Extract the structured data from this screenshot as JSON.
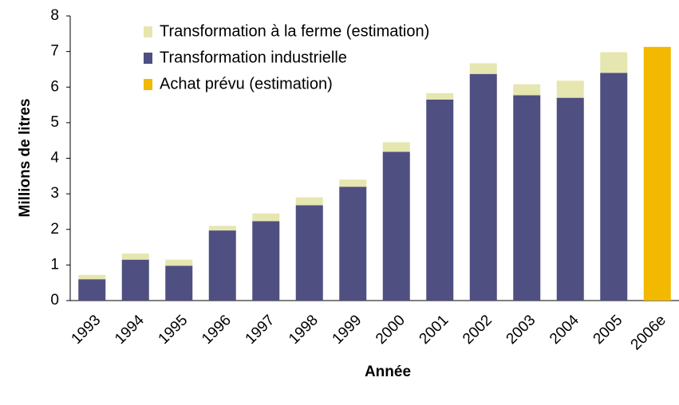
{
  "chart_data": {
    "type": "stacked_bar",
    "x_label": "Année",
    "y_label": "Millions de litres",
    "categories": [
      "1993",
      "1994",
      "1995",
      "1996",
      "1997",
      "1998",
      "1999",
      "2000",
      "2001",
      "2002",
      "2003",
      "2004",
      "2005",
      "2006e"
    ],
    "series": [
      {
        "name": "Transformation à la ferme (estimation)",
        "color": "#e6e6b0",
        "values": [
          0.12,
          0.17,
          0.17,
          0.13,
          0.22,
          0.22,
          0.2,
          0.27,
          0.18,
          0.3,
          0.31,
          0.48,
          0.58,
          null
        ]
      },
      {
        "name": "Transformation industrielle",
        "color": "#4f4f82",
        "values": [
          0.6,
          1.15,
          0.98,
          1.97,
          2.23,
          2.68,
          3.2,
          4.18,
          5.65,
          6.37,
          5.77,
          5.7,
          6.4,
          null
        ]
      },
      {
        "name": "Achat prévu (estimation)",
        "color": "#f2b900",
        "values": [
          null,
          null,
          null,
          null,
          null,
          null,
          null,
          null,
          null,
          null,
          null,
          null,
          null,
          7.13
        ]
      }
    ],
    "ylim": [
      0,
      8
    ],
    "yticks": [
      0,
      1,
      2,
      3,
      4,
      5,
      6,
      7,
      8
    ],
    "legend": "upper left"
  }
}
